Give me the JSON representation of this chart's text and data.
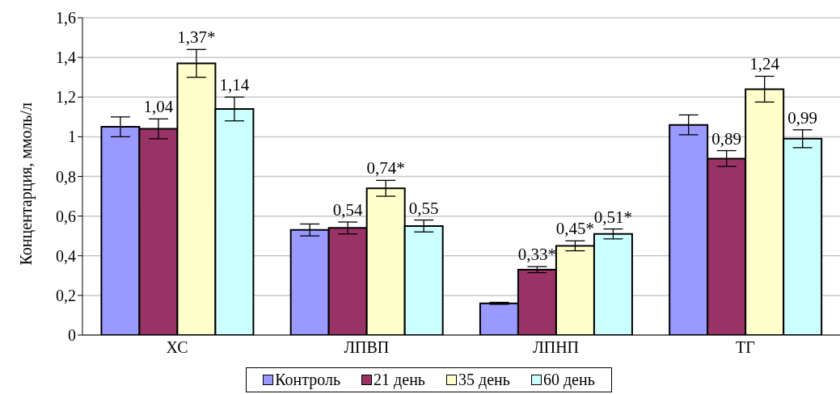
{
  "chart_data": {
    "type": "bar",
    "ylabel": "Концентарция, ммоль/л",
    "categories": [
      "ХС",
      "ЛПВП",
      "ЛПНП",
      "ТГ"
    ],
    "series": [
      {
        "name": "Контроль",
        "color": "#9999ff",
        "values": [
          1.05,
          0.53,
          0.16,
          1.06
        ],
        "errors": [
          0.05,
          0.03,
          0.005,
          0.05
        ]
      },
      {
        "name": "21 день",
        "color": "#993366",
        "values": [
          1.04,
          0.54,
          0.33,
          0.89
        ],
        "errors": [
          0.05,
          0.03,
          0.015,
          0.04
        ],
        "value_labels": [
          "1,04",
          "0,54",
          "0,33*",
          "0,89"
        ]
      },
      {
        "name": "35 день",
        "color": "#ffffcc",
        "values": [
          1.37,
          0.74,
          0.45,
          1.24
        ],
        "errors": [
          0.07,
          0.04,
          0.025,
          0.065
        ],
        "value_labels": [
          "1,37*",
          "0,74*",
          "0,45*",
          "1,24"
        ]
      },
      {
        "name": "60 день",
        "color": "#ccffff",
        "values": [
          1.14,
          0.55,
          0.51,
          0.99
        ],
        "errors": [
          0.06,
          0.03,
          0.025,
          0.045
        ],
        "value_labels": [
          "1,14",
          "0,55",
          "0,51*",
          "0,99"
        ]
      }
    ],
    "ylim": [
      0,
      1.6
    ],
    "yticks": [
      0,
      {
        "value": 0.2,
        "label": "0,2"
      },
      {
        "value": 0.4,
        "label": "0,4"
      },
      {
        "value": 0.6,
        "label": "0,6"
      },
      {
        "value": 0.8,
        "label": "0,8"
      },
      1,
      {
        "value": 1.2,
        "label": "1,2"
      },
      {
        "value": 1.4,
        "label": "1,4"
      },
      {
        "value": 1.6,
        "label": "1,6"
      }
    ],
    "grid": "y",
    "legend": "bottom"
  }
}
